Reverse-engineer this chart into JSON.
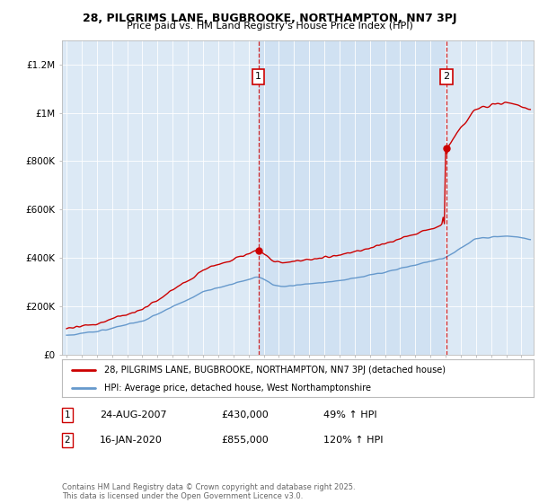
{
  "title1": "28, PILGRIMS LANE, BUGBROOKE, NORTHAMPTON, NN7 3PJ",
  "title2": "Price paid vs. HM Land Registry's House Price Index (HPI)",
  "bg_color": "#ffffff",
  "plot_bg_color": "#dce9f5",
  "shade_color": "#c8ddf0",
  "red_line_label": "28, PILGRIMS LANE, BUGBROOKE, NORTHAMPTON, NN7 3PJ (detached house)",
  "blue_line_label": "HPI: Average price, detached house, West Northamptonshire",
  "annotation1": {
    "num": "1",
    "date": "24-AUG-2007",
    "price": "£430,000",
    "pct": "49% ↑ HPI"
  },
  "annotation2": {
    "num": "2",
    "date": "16-JAN-2020",
    "price": "£855,000",
    "pct": "120% ↑ HPI"
  },
  "footer": "Contains HM Land Registry data © Crown copyright and database right 2025.\nThis data is licensed under the Open Government Licence v3.0.",
  "ylim": [
    0,
    1300000
  ],
  "yticks": [
    0,
    200000,
    400000,
    600000,
    800000,
    1000000,
    1200000
  ],
  "ytick_labels": [
    "£0",
    "£200K",
    "£400K",
    "£600K",
    "£800K",
    "£1M",
    "£1.2M"
  ],
  "red_color": "#cc0000",
  "blue_color": "#6699cc",
  "marker1_x": 2007.648,
  "marker2_x": 2020.04,
  "marker1_y": 430000,
  "marker2_y": 855000,
  "xmin": 1994.7,
  "xmax": 2025.8
}
